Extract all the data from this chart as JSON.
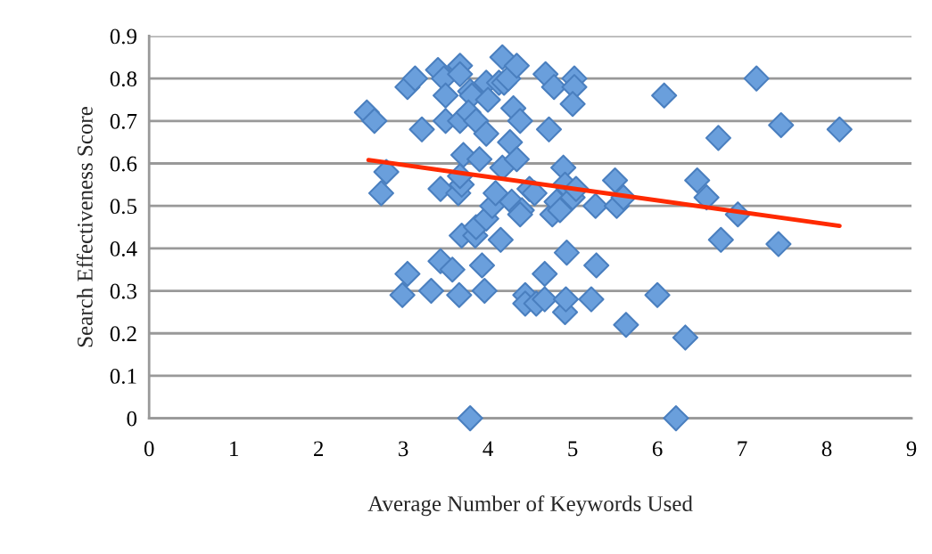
{
  "chart_data": {
    "type": "scatter",
    "xlabel": "Average Number of Keywords Used",
    "ylabel": "Search Effectiveness Score",
    "xlim": [
      0,
      9
    ],
    "xticks": [
      0,
      1,
      2,
      3,
      4,
      5,
      6,
      7,
      8,
      9
    ],
    "ylim": [
      0,
      0.9
    ],
    "yticks": [
      0,
      0.1,
      0.2,
      0.3,
      0.4,
      0.5,
      0.6,
      0.7,
      0.8,
      0.9
    ],
    "grid": "y",
    "marker": "diamond",
    "legend": false,
    "series": [
      {
        "color": "#6a9fdc",
        "x": [
          2.57,
          2.66,
          2.8,
          2.74,
          3.05,
          3.14,
          3.22,
          2.99,
          3.05,
          3.33,
          3.41,
          3.48,
          3.5,
          3.5,
          3.44,
          3.44,
          3.58,
          3.67,
          3.67,
          3.67,
          3.66,
          3.65,
          3.69,
          3.67,
          3.71,
          3.69,
          3.79,
          3.81,
          3.77,
          3.86,
          3.9,
          3.85,
          3.86,
          3.93,
          3.96,
          3.98,
          3.79,
          3.98,
          4.0,
          3.98,
          4.05,
          4.09,
          4.13,
          4.17,
          4.19,
          4.24,
          4.17,
          4.15,
          4.26,
          4.3,
          4.34,
          4.34,
          4.38,
          4.28,
          4.4,
          4.38,
          4.44,
          4.44,
          4.49,
          4.55,
          4.57,
          4.67,
          4.67,
          4.68,
          4.72,
          4.78,
          4.76,
          4.81,
          4.85,
          4.89,
          4.91,
          4.93,
          4.91,
          4.92,
          5.02,
          5.02,
          5.0,
          5.0,
          5.04,
          5.27,
          5.28,
          5.22,
          5.5,
          5.52,
          5.6,
          5.63,
          6.0,
          6.08,
          6.22,
          6.33,
          6.47,
          6.58,
          6.72,
          6.75,
          6.95,
          7.17,
          7.43,
          7.46,
          8.15
        ],
        "values": [
          0.72,
          0.7,
          0.58,
          0.53,
          0.78,
          0.8,
          0.68,
          0.29,
          0.34,
          0.3,
          0.82,
          0.8,
          0.76,
          0.7,
          0.54,
          0.37,
          0.35,
          0.83,
          0.81,
          0.7,
          0.29,
          0.53,
          0.55,
          0.57,
          0.62,
          0.43,
          0.77,
          0.76,
          0.72,
          0.7,
          0.61,
          0.43,
          0.45,
          0.36,
          0.3,
          0.47,
          0.0,
          0.79,
          0.75,
          0.67,
          0.5,
          0.53,
          0.79,
          0.85,
          0.79,
          0.8,
          0.59,
          0.42,
          0.65,
          0.73,
          0.83,
          0.61,
          0.7,
          0.51,
          0.49,
          0.48,
          0.29,
          0.27,
          0.54,
          0.53,
          0.27,
          0.28,
          0.34,
          0.81,
          0.68,
          0.78,
          0.48,
          0.51,
          0.49,
          0.59,
          0.55,
          0.39,
          0.25,
          0.28,
          0.8,
          0.78,
          0.74,
          0.52,
          0.54,
          0.5,
          0.36,
          0.28,
          0.56,
          0.5,
          0.52,
          0.22,
          0.29,
          0.76,
          0.0,
          0.19,
          0.56,
          0.52,
          0.66,
          0.42,
          0.48,
          0.8,
          0.41,
          0.69,
          0.68
        ]
      },
      {
        "type": "line",
        "marker": "none",
        "color": "#ff2a00",
        "x": [
          2.59,
          8.15
        ],
        "values": [
          0.608,
          0.453
        ]
      }
    ]
  }
}
